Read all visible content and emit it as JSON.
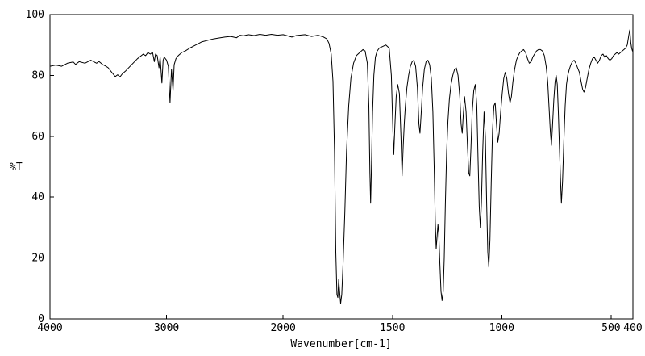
{
  "chart_data": {
    "type": "line",
    "title": "",
    "xlabel": "Wavenumber[cm-1]",
    "ylabel": "%T",
    "line_color": "#000000",
    "background": "#ffffff",
    "grid": false,
    "legend": false,
    "series_name": "IR transmittance spectrum",
    "x_axis": {
      "min": 400,
      "max": 4000,
      "reversed": true,
      "scale_break_at": 2000,
      "break_fraction": 0.4,
      "ticks": [
        4000,
        3000,
        2000,
        1500,
        1000,
        500,
        400
      ]
    },
    "y_axis": {
      "min": 0,
      "max": 100,
      "ticks": [
        0,
        20,
        40,
        60,
        80,
        100
      ]
    },
    "major_peaks": [
      {
        "wavenumber": 3430,
        "t": 79.5
      },
      {
        "wavenumber": 3040,
        "t": 77.5
      },
      {
        "wavenumber": 2970,
        "t": 71
      },
      {
        "wavenumber": 2945,
        "t": 75
      },
      {
        "wavenumber": 1750,
        "t": 7
      },
      {
        "wavenumber": 1737,
        "t": 5
      },
      {
        "wavenumber": 1600,
        "t": 38
      },
      {
        "wavenumber": 1494,
        "t": 54
      },
      {
        "wavenumber": 1456,
        "t": 47
      },
      {
        "wavenumber": 1374,
        "t": 61
      },
      {
        "wavenumber": 1300,
        "t": 23
      },
      {
        "wavenumber": 1273,
        "t": 6
      },
      {
        "wavenumber": 1151,
        "t": 47
      },
      {
        "wavenumber": 1098,
        "t": 30
      },
      {
        "wavenumber": 1059,
        "t": 17
      },
      {
        "wavenumber": 773,
        "t": 57
      },
      {
        "wavenumber": 727,
        "t": 38
      },
      {
        "wavenumber": 624,
        "t": 74.5
      }
    ],
    "points": [
      [
        4000,
        83
      ],
      [
        3950,
        83.4
      ],
      [
        3900,
        83
      ],
      [
        3850,
        84
      ],
      [
        3800,
        84.4
      ],
      [
        3780,
        83.6
      ],
      [
        3750,
        84.5
      ],
      [
        3700,
        84
      ],
      [
        3650,
        85
      ],
      [
        3600,
        84
      ],
      [
        3580,
        84.6
      ],
      [
        3550,
        83.6
      ],
      [
        3520,
        83
      ],
      [
        3500,
        82.5
      ],
      [
        3470,
        81
      ],
      [
        3440,
        79.6
      ],
      [
        3420,
        80.2
      ],
      [
        3400,
        79.5
      ],
      [
        3380,
        80.5
      ],
      [
        3350,
        81.5
      ],
      [
        3300,
        83.5
      ],
      [
        3250,
        85.5
      ],
      [
        3200,
        87
      ],
      [
        3180,
        86.5
      ],
      [
        3160,
        87.5
      ],
      [
        3140,
        87
      ],
      [
        3120,
        87.6
      ],
      [
        3105,
        84.5
      ],
      [
        3095,
        87
      ],
      [
        3080,
        86.5
      ],
      [
        3065,
        82.5
      ],
      [
        3055,
        86
      ],
      [
        3040,
        77.5
      ],
      [
        3030,
        85
      ],
      [
        3020,
        86
      ],
      [
        3000,
        85
      ],
      [
        2985,
        83
      ],
      [
        2970,
        71
      ],
      [
        2958,
        82
      ],
      [
        2945,
        75
      ],
      [
        2935,
        83.5
      ],
      [
        2920,
        85.5
      ],
      [
        2900,
        86.5
      ],
      [
        2870,
        87.5
      ],
      [
        2840,
        88
      ],
      [
        2800,
        89
      ],
      [
        2750,
        90
      ],
      [
        2700,
        91
      ],
      [
        2650,
        91.5
      ],
      [
        2600,
        92
      ],
      [
        2550,
        92.3
      ],
      [
        2500,
        92.6
      ],
      [
        2450,
        92.8
      ],
      [
        2400,
        92.4
      ],
      [
        2370,
        93.2
      ],
      [
        2340,
        93
      ],
      [
        2300,
        93.4
      ],
      [
        2250,
        93.1
      ],
      [
        2200,
        93.5
      ],
      [
        2150,
        93.2
      ],
      [
        2100,
        93.5
      ],
      [
        2050,
        93.2
      ],
      [
        2000,
        93.4
      ],
      [
        1960,
        92.6
      ],
      [
        1940,
        93.1
      ],
      [
        1900,
        93.4
      ],
      [
        1870,
        92.8
      ],
      [
        1840,
        93.2
      ],
      [
        1815,
        92.6
      ],
      [
        1800,
        92
      ],
      [
        1790,
        90.5
      ],
      [
        1780,
        87
      ],
      [
        1772,
        78
      ],
      [
        1765,
        55
      ],
      [
        1759,
        22
      ],
      [
        1754,
        8
      ],
      [
        1750,
        7
      ],
      [
        1746,
        13
      ],
      [
        1742,
        9
      ],
      [
        1737,
        5
      ],
      [
        1732,
        8
      ],
      [
        1726,
        18
      ],
      [
        1718,
        35
      ],
      [
        1710,
        55
      ],
      [
        1700,
        70
      ],
      [
        1690,
        79
      ],
      [
        1678,
        84
      ],
      [
        1665,
        86.5
      ],
      [
        1650,
        87.5
      ],
      [
        1635,
        88.5
      ],
      [
        1625,
        88
      ],
      [
        1615,
        84
      ],
      [
        1608,
        70
      ],
      [
        1603,
        48
      ],
      [
        1600,
        38
      ],
      [
        1596,
        50
      ],
      [
        1591,
        68
      ],
      [
        1585,
        80
      ],
      [
        1578,
        86
      ],
      [
        1570,
        88
      ],
      [
        1560,
        89
      ],
      [
        1545,
        89.5
      ],
      [
        1530,
        90
      ],
      [
        1515,
        89
      ],
      [
        1505,
        80
      ],
      [
        1498,
        62
      ],
      [
        1494,
        54
      ],
      [
        1489,
        63
      ],
      [
        1483,
        73
      ],
      [
        1476,
        77
      ],
      [
        1468,
        74
      ],
      [
        1461,
        60
      ],
      [
        1456,
        47
      ],
      [
        1451,
        56
      ],
      [
        1446,
        64
      ],
      [
        1441,
        70
      ],
      [
        1434,
        76
      ],
      [
        1426,
        80
      ],
      [
        1418,
        83
      ],
      [
        1410,
        84.5
      ],
      [
        1402,
        85
      ],
      [
        1394,
        83
      ],
      [
        1386,
        76
      ],
      [
        1379,
        64
      ],
      [
        1374,
        61
      ],
      [
        1369,
        67
      ],
      [
        1362,
        76
      ],
      [
        1354,
        82
      ],
      [
        1346,
        84.5
      ],
      [
        1338,
        85
      ],
      [
        1330,
        83.5
      ],
      [
        1322,
        79
      ],
      [
        1315,
        68
      ],
      [
        1309,
        50
      ],
      [
        1304,
        32
      ],
      [
        1300,
        23
      ],
      [
        1296,
        27
      ],
      [
        1292,
        31
      ],
      [
        1288,
        28
      ],
      [
        1283,
        18
      ],
      [
        1278,
        9
      ],
      [
        1273,
        6
      ],
      [
        1268,
        9
      ],
      [
        1263,
        20
      ],
      [
        1258,
        38
      ],
      [
        1252,
        55
      ],
      [
        1246,
        65
      ],
      [
        1240,
        72
      ],
      [
        1232,
        77
      ],
      [
        1224,
        80
      ],
      [
        1216,
        82
      ],
      [
        1208,
        82.5
      ],
      [
        1200,
        80
      ],
      [
        1192,
        73
      ],
      [
        1186,
        64
      ],
      [
        1181,
        61
      ],
      [
        1176,
        67
      ],
      [
        1170,
        73
      ],
      [
        1163,
        68
      ],
      [
        1157,
        57
      ],
      [
        1151,
        48
      ],
      [
        1146,
        47
      ],
      [
        1141,
        56
      ],
      [
        1135,
        68
      ],
      [
        1128,
        75
      ],
      [
        1121,
        77
      ],
      [
        1114,
        70
      ],
      [
        1108,
        52
      ],
      [
        1103,
        37
      ],
      [
        1098,
        30
      ],
      [
        1093,
        38
      ],
      [
        1087,
        55
      ],
      [
        1081,
        68
      ],
      [
        1075,
        60
      ],
      [
        1069,
        38
      ],
      [
        1064,
        22
      ],
      [
        1059,
        17
      ],
      [
        1054,
        26
      ],
      [
        1048,
        45
      ],
      [
        1042,
        62
      ],
      [
        1036,
        70
      ],
      [
        1030,
        71
      ],
      [
        1024,
        64
      ],
      [
        1018,
        58
      ],
      [
        1012,
        61
      ],
      [
        1005,
        68
      ],
      [
        998,
        74
      ],
      [
        991,
        79
      ],
      [
        984,
        81
      ],
      [
        977,
        79
      ],
      [
        969,
        74
      ],
      [
        962,
        71
      ],
      [
        956,
        73
      ],
      [
        949,
        78
      ],
      [
        941,
        82
      ],
      [
        933,
        85
      ],
      [
        925,
        86.5
      ],
      [
        917,
        87.5
      ],
      [
        909,
        88
      ],
      [
        900,
        88.5
      ],
      [
        891,
        87.5
      ],
      [
        882,
        85.5
      ],
      [
        874,
        84
      ],
      [
        866,
        84.5
      ],
      [
        858,
        86
      ],
      [
        850,
        87
      ],
      [
        841,
        88
      ],
      [
        832,
        88.5
      ],
      [
        823,
        88.5
      ],
      [
        814,
        88
      ],
      [
        805,
        86.5
      ],
      [
        797,
        83
      ],
      [
        790,
        78
      ],
      [
        784,
        70
      ],
      [
        778,
        62
      ],
      [
        773,
        57
      ],
      [
        768,
        63
      ],
      [
        762,
        72
      ],
      [
        756,
        78
      ],
      [
        751,
        80
      ],
      [
        746,
        77
      ],
      [
        741,
        68
      ],
      [
        736,
        56
      ],
      [
        731,
        45
      ],
      [
        727,
        38
      ],
      [
        722,
        45
      ],
      [
        716,
        58
      ],
      [
        710,
        70
      ],
      [
        704,
        77
      ],
      [
        698,
        80
      ],
      [
        691,
        82
      ],
      [
        684,
        83.5
      ],
      [
        677,
        84.5
      ],
      [
        669,
        85
      ],
      [
        661,
        84
      ],
      [
        653,
        82.5
      ],
      [
        645,
        81
      ],
      [
        637,
        78
      ],
      [
        630,
        75.5
      ],
      [
        624,
        74.5
      ],
      [
        617,
        76
      ],
      [
        609,
        79
      ],
      [
        601,
        82
      ],
      [
        593,
        84
      ],
      [
        585,
        85.5
      ],
      [
        577,
        86
      ],
      [
        569,
        85
      ],
      [
        561,
        84
      ],
      [
        553,
        85
      ],
      [
        545,
        86.5
      ],
      [
        537,
        87
      ],
      [
        529,
        86
      ],
      [
        521,
        86.5
      ],
      [
        513,
        85.5
      ],
      [
        505,
        85
      ],
      [
        497,
        85.5
      ],
      [
        489,
        86.5
      ],
      [
        481,
        87
      ],
      [
        473,
        87.5
      ],
      [
        465,
        87
      ],
      [
        457,
        87.5
      ],
      [
        449,
        88
      ],
      [
        441,
        88.5
      ],
      [
        433,
        89
      ],
      [
        426,
        90
      ],
      [
        419,
        93
      ],
      [
        414,
        95
      ],
      [
        410,
        91
      ],
      [
        406,
        89
      ],
      [
        402,
        88
      ],
      [
        400,
        88
      ]
    ]
  }
}
